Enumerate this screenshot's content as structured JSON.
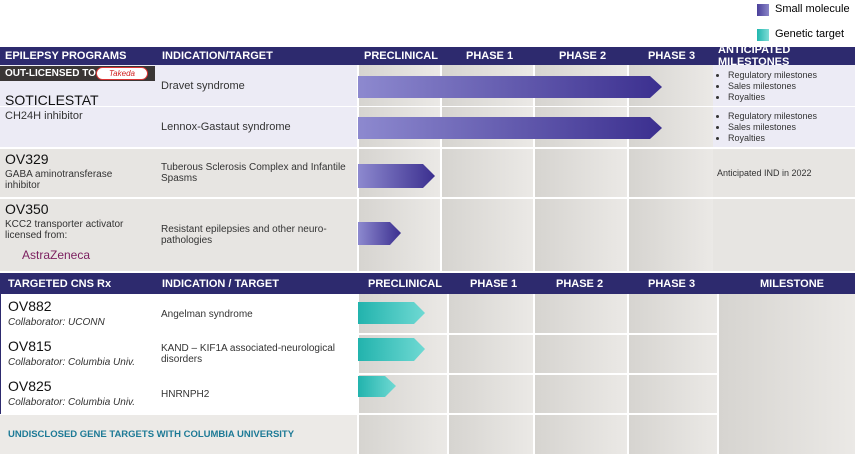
{
  "legend": [
    "Small molecule",
    "Genetic target"
  ],
  "section1": {
    "headers": [
      "EPILEPSY PROGRAMS",
      "INDICATION/TARGET",
      "PRECLINICAL",
      "PHASE 1",
      "PHASE 2",
      "PHASE 3",
      "ANTICIPATED MILESTONES"
    ],
    "out_licensed": "OUT-LICENSED TO",
    "partner_logo": "Takeda",
    "programs": [
      {
        "name": "SOTICLESTAT",
        "description": "CH24H inhibitor",
        "indications": [
          {
            "label": "Dravet syndrome",
            "milestones": [
              "Regulatory milestones",
              "Sales milestones",
              "Royalties"
            ]
          },
          {
            "label": "Lennox-Gastaut syndrome",
            "milestones": [
              "Regulatory milestones",
              "Sales milestones",
              "Royalties"
            ]
          }
        ]
      },
      {
        "name": "OV329",
        "description": "GABA aminotransferase inhibitor",
        "indications": [
          {
            "label": "Tuberous Sclerosis Complex and Infantile Spasms",
            "milestone": "Anticipated IND in 2022"
          }
        ]
      },
      {
        "name": "OV350",
        "description": "KCC2 transporter activator licensed from:",
        "partner_logo": "AstraZeneca",
        "indications": [
          {
            "label": "Resistant epilepsies and other neuro-pathologies"
          }
        ]
      }
    ]
  },
  "section2": {
    "headers": [
      "TARGETED CNS Rx",
      "INDICATION / TARGET",
      "PRECLINICAL",
      "PHASE 1",
      "PHASE 2",
      "PHASE 3",
      "MILESTONE"
    ],
    "programs": [
      {
        "name": "OV882",
        "collaborator": "Collaborator: UCONN",
        "indication": "Angelman syndrome"
      },
      {
        "name": "OV815",
        "collaborator": "Collaborator: Columbia Univ.",
        "indication": "KAND – KIF1A associated-neurological disorders"
      },
      {
        "name": "OV825",
        "collaborator": "Collaborator: Columbia Univ.",
        "indication": "HNRNPH2"
      }
    ],
    "footer": "UNDISCLOSED GENE TARGETS WITH COLUMBIA UNIVERSITY"
  }
}
